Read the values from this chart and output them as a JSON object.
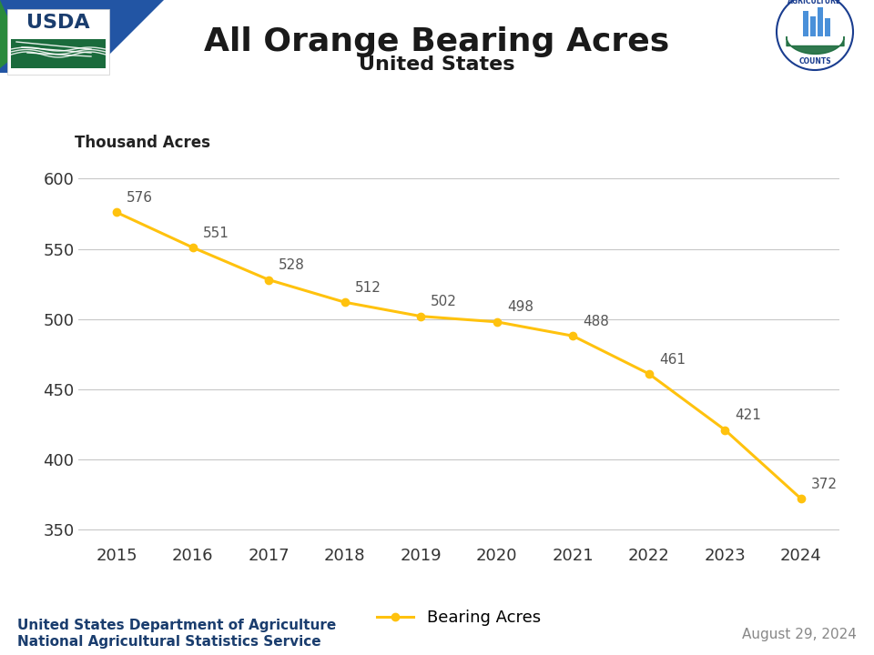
{
  "title": "All Orange Bearing Acres",
  "subtitle": "United States",
  "ylabel": "Thousand Acres",
  "years": [
    2015,
    2016,
    2017,
    2018,
    2019,
    2020,
    2021,
    2022,
    2023,
    2024
  ],
  "values": [
    576,
    551,
    528,
    512,
    502,
    498,
    488,
    461,
    421,
    372
  ],
  "line_color": "#FFC20E",
  "marker_color": "#FFC20E",
  "ylim": [
    340,
    620
  ],
  "yticks": [
    350,
    400,
    450,
    500,
    550,
    600
  ],
  "background_color": "#ffffff",
  "grid_color": "#c8c8c8",
  "title_fontsize": 26,
  "subtitle_fontsize": 16,
  "axis_label_fontsize": 12,
  "tick_fontsize": 13,
  "annotation_fontsize": 11,
  "legend_label": "Bearing Acres",
  "footer_left_line1": "United States Department of Agriculture",
  "footer_left_line2": "National Agricultural Statistics Service",
  "footer_right": "August 29, 2024",
  "usda_blue": "#1a3d6e",
  "usda_green": "#1a6b3c",
  "agcounts_blue": "#1a3d8f",
  "agcounts_green": "#1a6b3c"
}
